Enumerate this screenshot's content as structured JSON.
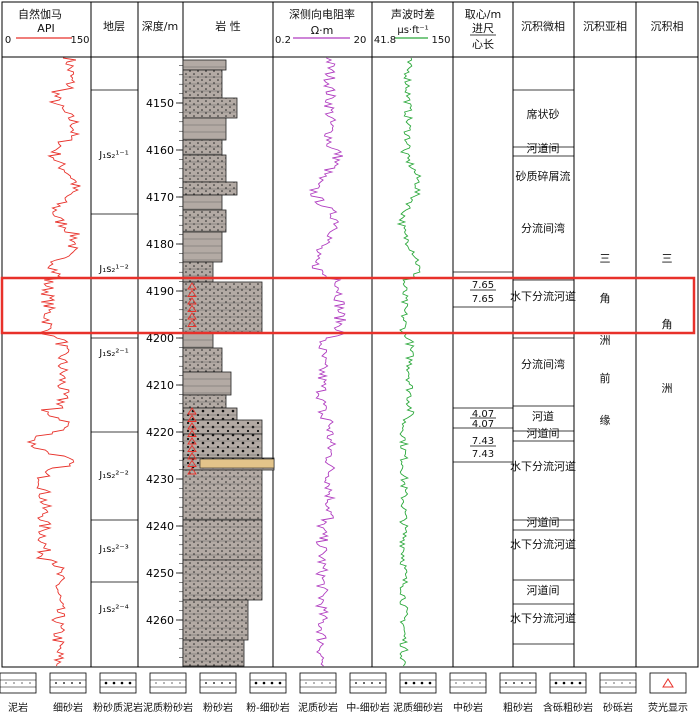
{
  "headers": {
    "gamma": "自然伽马",
    "gamma_unit": "API",
    "gamma_min": "0",
    "gamma_max": "150",
    "strata": "地层",
    "depth": "深度/m",
    "lithology": "岩 性",
    "resistivity": "深侧向电阻率",
    "res_unit": "Ω·m",
    "res_min": "0.2",
    "res_max": "20",
    "sonic": "声波时差",
    "sonic_unit": "μs·ft⁻¹",
    "sonic_min": "41.8",
    "sonic_max": "150",
    "core": "取心/m",
    "core_sub1": "进尺",
    "core_sub2": "心长",
    "micro": "沉积微相",
    "sub": "沉积亚相",
    "facies": "沉积相"
  },
  "strata": [
    {
      "label": "J₁s₂¹⁻¹"
    },
    {
      "label": "J₁s₂¹⁻²"
    },
    {
      "label": "J₁s₂²⁻¹"
    },
    {
      "label": "J₁s₂²⁻²"
    },
    {
      "label": "J₁s₂²⁻³"
    },
    {
      "label": "J₁s₂²⁻⁴"
    }
  ],
  "depth_ticks": [
    "4150",
    "4160",
    "4170",
    "4180",
    "4190",
    "4200",
    "4210",
    "4220",
    "4230",
    "4240",
    "4250",
    "4260"
  ],
  "core_values": [
    {
      "run": "7.65",
      "rec": "7.65"
    },
    {
      "run": "4.07",
      "rec": "4.07"
    },
    {
      "run": "7.43",
      "rec": "7.43"
    }
  ],
  "micro_facies": [
    "席状砂",
    "河道间",
    "砂质碎屑流",
    "分流间湾",
    "水下分流河道",
    "分流间湾",
    "河道",
    "河道间",
    "水下分流河道",
    "河道间",
    "水下分流河道",
    "河道间",
    "水下分流河道"
  ],
  "sub_facies": [
    "三",
    "角",
    "洲",
    "前",
    "缘"
  ],
  "facies": [
    "三",
    "角",
    "洲"
  ],
  "legend": [
    {
      "label": "泥岩"
    },
    {
      "label": "细砂岩"
    },
    {
      "label": "粉砂质泥岩"
    },
    {
      "label": "泥质粉砂岩"
    },
    {
      "label": "粉砂岩"
    },
    {
      "label": "粉-细砂岩"
    },
    {
      "label": "泥质砂岩"
    },
    {
      "label": "中-细砂岩"
    },
    {
      "label": "泥质细砂岩"
    },
    {
      "label": "中砂岩"
    },
    {
      "label": "粗砂岩"
    },
    {
      "label": "含砾粗砂岩"
    },
    {
      "label": "砂砾岩"
    },
    {
      "label": "荧光显示"
    }
  ],
  "colors": {
    "gamma": "#e8312a",
    "resistivity": "#b03cc0",
    "sonic": "#2aa83a",
    "highlight": "#e8312a",
    "rock_fill": "#b3aaa4",
    "tan_band": "#e3c48a"
  }
}
